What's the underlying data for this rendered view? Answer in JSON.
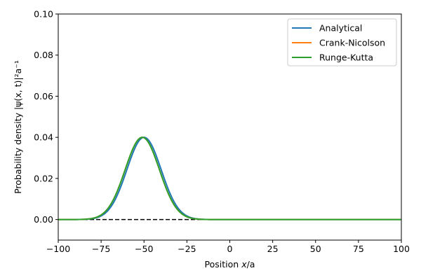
{
  "chart_data": {
    "type": "line",
    "xlabel_main": "Position ",
    "xlabel_var": "x",
    "xlabel_unit": "/a",
    "ylabel": "Probability density |ψ(x, t)|²a⁻¹",
    "xlim": [
      -100,
      100
    ],
    "ylim": [
      -0.01,
      0.1
    ],
    "x_ticks": [
      -100,
      -75,
      -50,
      -25,
      0,
      25,
      50,
      75,
      100
    ],
    "x_tick_labels": [
      "−100",
      "−75",
      "−50",
      "−25",
      "0",
      "25",
      "50",
      "75",
      "100"
    ],
    "y_ticks": [
      0.0,
      0.02,
      0.04,
      0.06,
      0.08,
      0.1
    ],
    "y_tick_labels": [
      "0.00",
      "0.02",
      "0.04",
      "0.06",
      "0.08",
      "0.10"
    ],
    "grid": false,
    "legend_position": "top-right",
    "reference_line": {
      "y": 0,
      "style": "dashed",
      "color": "#000000"
    },
    "series": [
      {
        "name": "Analytical",
        "color": "#1f77b4",
        "peak": 0.04,
        "center": -50,
        "width": 10,
        "x_range": [
          -100,
          100
        ]
      },
      {
        "name": "Crank-Nicolson",
        "color": "#ff7f0e",
        "peak": 0.04,
        "center": -51,
        "width": 10,
        "x_range": [
          -100,
          100
        ]
      },
      {
        "name": "Runge-Kutta",
        "color": "#2ca02c",
        "peak": 0.04,
        "center": -51,
        "width": 10,
        "x_range": [
          -100,
          100
        ]
      }
    ]
  }
}
